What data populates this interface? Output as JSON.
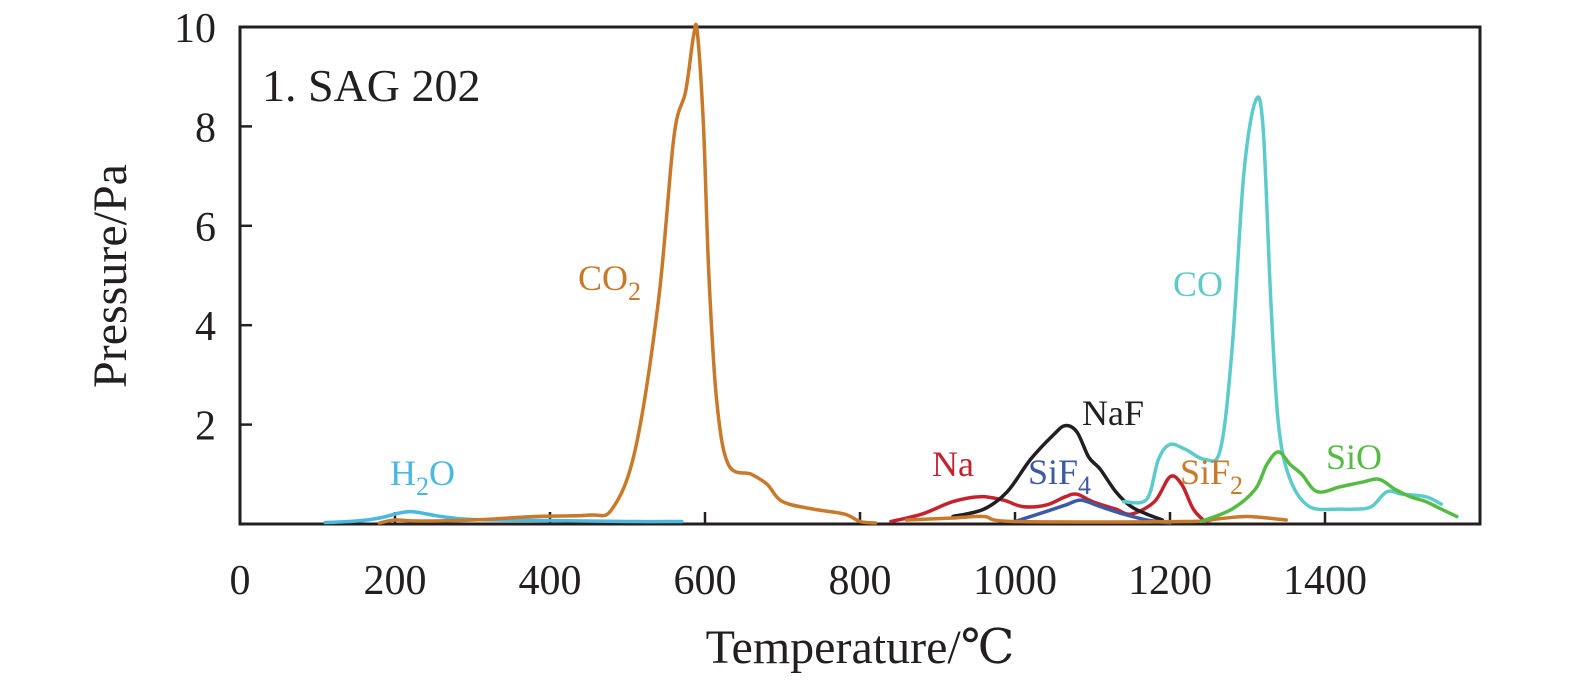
{
  "chart_data": {
    "type": "line",
    "panel_label": "1. SAG 202",
    "xlabel": "Temperature/℃",
    "ylabel": "Pressure/Pa",
    "xlim": [
      0,
      1600
    ],
    "ylim": [
      0,
      10
    ],
    "xticks": [
      "0",
      "200",
      "400",
      "600",
      "800",
      "1000",
      "1200",
      "1400"
    ],
    "yticks": [
      "2",
      "4",
      "6",
      "8",
      "10"
    ],
    "grid": false,
    "series": [
      {
        "key": "h2o",
        "name": "H2O",
        "label_main": "H",
        "label_sub": "2",
        "label_tail": "O",
        "color": "#4bb8e0",
        "points": [
          [
            110,
            0.03
          ],
          [
            150,
            0.06
          ],
          [
            180,
            0.12
          ],
          [
            205,
            0.22
          ],
          [
            220,
            0.25
          ],
          [
            235,
            0.22
          ],
          [
            260,
            0.15
          ],
          [
            300,
            0.09
          ],
          [
            400,
            0.07
          ],
          [
            500,
            0.05
          ],
          [
            570,
            0.05
          ]
        ]
      },
      {
        "key": "co2",
        "name": "CO2",
        "label_main": "CO",
        "label_sub": "2",
        "label_tail": "",
        "color": "#c8792a",
        "points": [
          [
            180,
            0.02
          ],
          [
            200,
            0.08
          ],
          [
            230,
            0.06
          ],
          [
            300,
            0.08
          ],
          [
            380,
            0.15
          ],
          [
            450,
            0.18
          ],
          [
            480,
            0.3
          ],
          [
            510,
            1.5
          ],
          [
            540,
            4.5
          ],
          [
            560,
            7.8
          ],
          [
            575,
            8.7
          ],
          [
            585,
            9.8
          ],
          [
            590,
            9.9
          ],
          [
            598,
            8.0
          ],
          [
            605,
            5.0
          ],
          [
            615,
            2.5
          ],
          [
            630,
            1.2
          ],
          [
            660,
            1.0
          ],
          [
            680,
            0.8
          ],
          [
            700,
            0.45
          ],
          [
            740,
            0.3
          ],
          [
            780,
            0.2
          ],
          [
            800,
            0.05
          ],
          [
            820,
            0.02
          ]
        ]
      },
      {
        "key": "na",
        "name": "Na",
        "label_main": "Na",
        "label_sub": "",
        "label_tail": "",
        "color": "#c4232e",
        "points": [
          [
            840,
            0.05
          ],
          [
            880,
            0.2
          ],
          [
            920,
            0.45
          ],
          [
            955,
            0.55
          ],
          [
            985,
            0.48
          ],
          [
            1010,
            0.35
          ],
          [
            1040,
            0.38
          ],
          [
            1065,
            0.55
          ],
          [
            1080,
            0.6
          ],
          [
            1100,
            0.45
          ],
          [
            1130,
            0.3
          ],
          [
            1150,
            0.2
          ],
          [
            1180,
            0.45
          ],
          [
            1200,
            0.95
          ],
          [
            1215,
            0.8
          ],
          [
            1230,
            0.3
          ],
          [
            1245,
            0.05
          ]
        ]
      },
      {
        "key": "naf",
        "name": "NaF",
        "label_main": "NaF",
        "label_sub": "",
        "label_tail": "",
        "color": "#231f20",
        "points": [
          [
            920,
            0.15
          ],
          [
            960,
            0.3
          ],
          [
            990,
            0.65
          ],
          [
            1020,
            1.3
          ],
          [
            1050,
            1.8
          ],
          [
            1065,
            1.98
          ],
          [
            1080,
            1.85
          ],
          [
            1095,
            1.35
          ],
          [
            1110,
            1.1
          ],
          [
            1130,
            0.65
          ],
          [
            1150,
            0.35
          ],
          [
            1170,
            0.2
          ],
          [
            1190,
            0.08
          ]
        ]
      },
      {
        "key": "sif4",
        "name": "SiF4",
        "label_main": "SiF",
        "label_sub": "4",
        "label_tail": "",
        "color": "#3c5aa6",
        "points": [
          [
            1000,
            0.05
          ],
          [
            1040,
            0.25
          ],
          [
            1065,
            0.38
          ],
          [
            1085,
            0.48
          ],
          [
            1110,
            0.35
          ],
          [
            1140,
            0.2
          ],
          [
            1170,
            0.08
          ],
          [
            1200,
            0.02
          ]
        ]
      },
      {
        "key": "sif2",
        "name": "SiF2",
        "label_main": "SiF",
        "label_sub": "2",
        "label_tail": "",
        "color": "#c8792a",
        "points": [
          [
            860,
            0.08
          ],
          [
            920,
            0.12
          ],
          [
            960,
            0.15
          ],
          [
            1000,
            0.05
          ],
          [
            1220,
            0.05
          ],
          [
            1260,
            0.1
          ],
          [
            1300,
            0.15
          ],
          [
            1350,
            0.08
          ]
        ]
      },
      {
        "key": "co",
        "name": "CO",
        "label_main": "CO",
        "label_sub": "",
        "label_tail": "",
        "color": "#5ecbcb",
        "points": [
          [
            1140,
            0.45
          ],
          [
            1170,
            0.5
          ],
          [
            1185,
            1.3
          ],
          [
            1200,
            1.6
          ],
          [
            1220,
            1.5
          ],
          [
            1245,
            1.3
          ],
          [
            1265,
            1.5
          ],
          [
            1280,
            3.5
          ],
          [
            1295,
            7.0
          ],
          [
            1310,
            8.5
          ],
          [
            1320,
            8.0
          ],
          [
            1330,
            4.5
          ],
          [
            1340,
            2.0
          ],
          [
            1355,
            0.9
          ],
          [
            1380,
            0.35
          ],
          [
            1420,
            0.3
          ],
          [
            1440,
            0.3
          ],
          [
            1460,
            0.35
          ],
          [
            1480,
            0.65
          ],
          [
            1500,
            0.6
          ],
          [
            1530,
            0.55
          ],
          [
            1550,
            0.4
          ]
        ]
      },
      {
        "key": "sio",
        "name": "SiO",
        "label_main": "SiO",
        "label_sub": "",
        "label_tail": "",
        "color": "#55bb44",
        "points": [
          [
            1240,
            0.05
          ],
          [
            1280,
            0.3
          ],
          [
            1310,
            0.7
          ],
          [
            1325,
            1.2
          ],
          [
            1340,
            1.45
          ],
          [
            1355,
            1.2
          ],
          [
            1370,
            1.0
          ],
          [
            1390,
            0.65
          ],
          [
            1420,
            0.75
          ],
          [
            1450,
            0.85
          ],
          [
            1470,
            0.9
          ],
          [
            1490,
            0.7
          ],
          [
            1510,
            0.55
          ],
          [
            1530,
            0.45
          ],
          [
            1550,
            0.3
          ],
          [
            1570,
            0.15
          ]
        ]
      }
    ]
  }
}
